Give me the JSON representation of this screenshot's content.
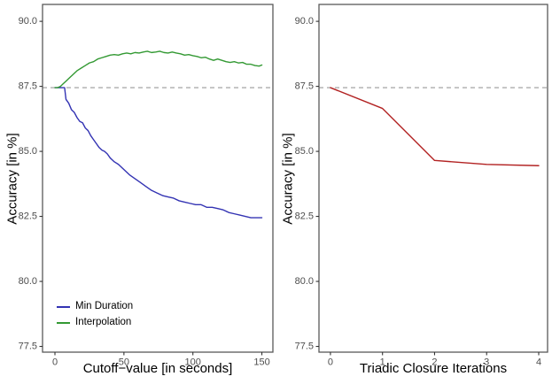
{
  "figure": {
    "background": "#ffffff",
    "panel_border_color": "#595959",
    "tick_label_color": "#4d4d4d",
    "tick_mark_color": "#333333"
  },
  "chart_data": [
    {
      "type": "line",
      "title": "",
      "xlabel": "Cutoff−value [in seconds]",
      "ylabel": "Accuracy [in %]",
      "xlim": [
        -9,
        158
      ],
      "ylim": [
        77.28,
        90.65
      ],
      "xticks": [
        0,
        50,
        100,
        150
      ],
      "xtick_labels": [
        "0",
        "50",
        "100",
        "150"
      ],
      "yticks": [
        90.0,
        87.5,
        85.0,
        82.5,
        80.0,
        77.5
      ],
      "ytick_labels": [
        "90.0",
        "87.5",
        "85.0",
        "82.5",
        "80.0",
        "77.5"
      ],
      "grid": false,
      "legend_position": "inside-bottom-left",
      "reference_line": {
        "y": 87.45,
        "style": "dashed",
        "color": "#999999"
      },
      "series": [
        {
          "name": "Min Duration",
          "color": "#3333b3",
          "x": [
            0,
            6,
            7,
            8,
            10,
            12,
            14,
            16,
            18,
            20,
            22,
            24,
            26,
            28,
            30,
            32,
            34,
            36,
            38,
            40,
            43,
            46,
            50,
            54,
            58,
            62,
            66,
            70,
            74,
            78,
            82,
            86,
            90,
            94,
            98,
            102,
            106,
            110,
            114,
            118,
            122,
            126,
            130,
            134,
            138,
            142,
            146,
            150
          ],
          "y": [
            87.45,
            87.45,
            87.45,
            87.0,
            86.85,
            86.6,
            86.5,
            86.3,
            86.15,
            86.1,
            85.9,
            85.8,
            85.6,
            85.45,
            85.3,
            85.15,
            85.05,
            85.0,
            84.9,
            84.75,
            84.6,
            84.5,
            84.3,
            84.1,
            83.95,
            83.8,
            83.65,
            83.5,
            83.4,
            83.3,
            83.25,
            83.2,
            83.1,
            83.05,
            83.0,
            82.95,
            82.95,
            82.85,
            82.85,
            82.8,
            82.75,
            82.65,
            82.6,
            82.55,
            82.5,
            82.45,
            82.45,
            82.45
          ]
        },
        {
          "name": "Interpolation",
          "color": "#339933",
          "x": [
            0,
            2,
            4,
            6,
            8,
            10,
            13,
            16,
            19,
            22,
            25,
            28,
            31,
            34,
            37,
            40,
            43,
            46,
            49,
            52,
            55,
            58,
            61,
            64,
            67,
            70,
            73,
            76,
            79,
            82,
            85,
            88,
            91,
            94,
            97,
            100,
            103,
            106,
            109,
            112,
            115,
            118,
            121,
            124,
            127,
            130,
            133,
            136,
            139,
            142,
            145,
            148,
            150
          ],
          "y": [
            87.45,
            87.45,
            87.5,
            87.6,
            87.7,
            87.8,
            87.95,
            88.1,
            88.2,
            88.3,
            88.4,
            88.45,
            88.55,
            88.6,
            88.65,
            88.7,
            88.72,
            88.7,
            88.75,
            88.78,
            88.75,
            88.8,
            88.78,
            88.82,
            88.85,
            88.8,
            88.82,
            88.85,
            88.8,
            88.78,
            88.82,
            88.78,
            88.75,
            88.7,
            88.72,
            88.68,
            88.65,
            88.6,
            88.62,
            88.55,
            88.5,
            88.55,
            88.5,
            88.45,
            88.42,
            88.45,
            88.4,
            88.42,
            88.35,
            88.35,
            88.3,
            88.28,
            88.32
          ]
        }
      ]
    },
    {
      "type": "line",
      "title": "",
      "xlabel": "Triadic Closure Iterations",
      "ylabel": "Accuracy [in %]",
      "xlim": [
        -0.22,
        4.17
      ],
      "ylim": [
        77.28,
        90.65
      ],
      "xticks": [
        0,
        1,
        2,
        3,
        4
      ],
      "xtick_labels": [
        "0",
        "1",
        "2",
        "3",
        "4"
      ],
      "yticks": [
        90.0,
        87.5,
        85.0,
        82.5,
        80.0,
        77.5
      ],
      "ytick_labels": [
        "90.0",
        "87.5",
        "85.0",
        "82.5",
        "80.0",
        "77.5"
      ],
      "grid": false,
      "legend_position": "none",
      "reference_line": {
        "y": 87.45,
        "style": "dashed",
        "color": "#999999"
      },
      "series": [
        {
          "color": "#b22222",
          "x": [
            0,
            1,
            2,
            3,
            4
          ],
          "y": [
            87.45,
            86.65,
            84.65,
            84.5,
            84.45
          ]
        }
      ]
    }
  ]
}
